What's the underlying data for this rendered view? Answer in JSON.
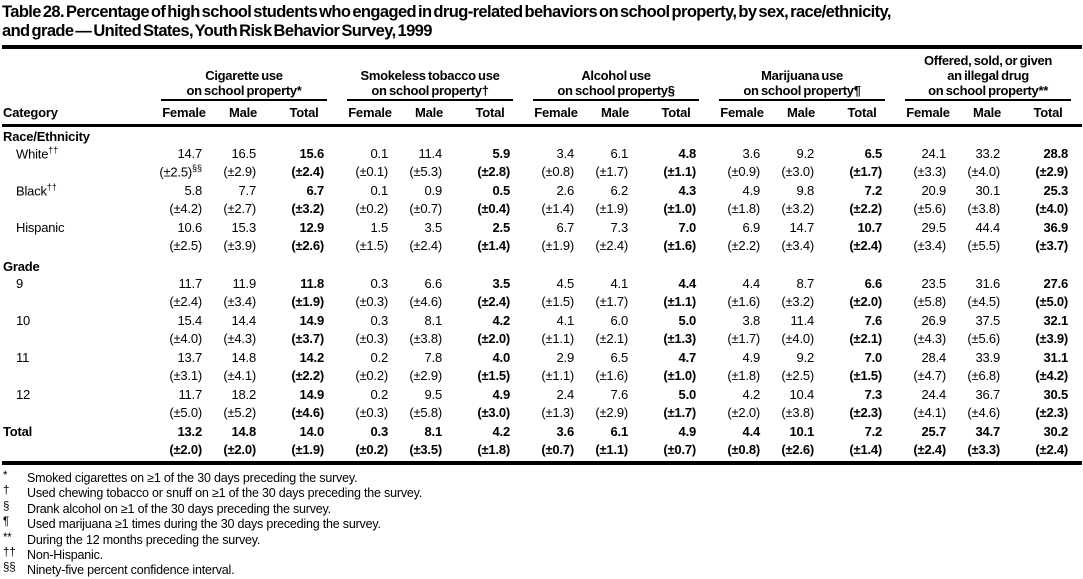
{
  "title": {
    "line1": "Table 28. Percentage of high school students who engaged in drug-related behaviors on school property, by sex, race/ethnicity,",
    "line2": "and grade — United States, Youth Risk Behavior Survey, 1999"
  },
  "table": {
    "category_header": "Category",
    "sub_headers": [
      "Female",
      "Male",
      "Total"
    ],
    "column_groups": [
      {
        "lines": [
          "Cigarette use",
          "on school property*"
        ]
      },
      {
        "lines": [
          "Smokeless tobacco use",
          "on school property†"
        ]
      },
      {
        "lines": [
          "Alcohol use",
          "on school property§"
        ]
      },
      {
        "lines": [
          "Marijuana use",
          "on school property¶"
        ]
      },
      {
        "lines": [
          "Offered, sold, or given",
          "an illegal drug",
          "on school property**"
        ]
      }
    ],
    "sections": [
      {
        "name": "Race/Ethnicity",
        "rows": [
          {
            "label": "White",
            "label_sup": "††",
            "bold": false,
            "values": [
              "14.7",
              "16.5",
              "15.6",
              "0.1",
              "11.4",
              "5.9",
              "3.4",
              "6.1",
              "4.8",
              "3.6",
              "9.2",
              "6.5",
              "24.1",
              "33.2",
              "28.8"
            ],
            "ci": [
              "(±2.5)|§§",
              "(±2.9)",
              "(±2.4)",
              "(±0.1)",
              "(±5.3)",
              "(±2.8)",
              "(±0.8)",
              "(±1.7)",
              "(±1.1)",
              "(±0.9)",
              "(±3.0)",
              "(±1.7)",
              "(±3.3)",
              "(±4.0)",
              "(±2.9)"
            ]
          },
          {
            "label": "Black",
            "label_sup": "††",
            "bold": false,
            "values": [
              "5.8",
              "7.7",
              "6.7",
              "0.1",
              "0.9",
              "0.5",
              "2.6",
              "6.2",
              "4.3",
              "4.9",
              "9.8",
              "7.2",
              "20.9",
              "30.1",
              "25.3"
            ],
            "ci": [
              "(±4.2)",
              "(±2.7)",
              "(±3.2)",
              "(±0.2)",
              "(±0.7)",
              "(±0.4)",
              "(±1.4)",
              "(±1.9)",
              "(±1.0)",
              "(±1.8)",
              "(±3.2)",
              "(±2.2)",
              "(±5.6)",
              "(±3.8)",
              "(±4.0)"
            ]
          },
          {
            "label": "Hispanic",
            "label_sup": "",
            "bold": false,
            "values": [
              "10.6",
              "15.3",
              "12.9",
              "1.5",
              "3.5",
              "2.5",
              "6.7",
              "7.3",
              "7.0",
              "6.9",
              "14.7",
              "10.7",
              "29.5",
              "44.4",
              "36.9"
            ],
            "ci": [
              "(±2.5)",
              "(±3.9)",
              "(±2.6)",
              "(±1.5)",
              "(±2.4)",
              "(±1.4)",
              "(±1.9)",
              "(±2.4)",
              "(±1.6)",
              "(±2.2)",
              "(±3.4)",
              "(±2.4)",
              "(±3.4)",
              "(±5.5)",
              "(±3.7)"
            ]
          }
        ]
      },
      {
        "name": "Grade",
        "rows": [
          {
            "label": "9",
            "label_sup": "",
            "bold": false,
            "values": [
              "11.7",
              "11.9",
              "11.8",
              "0.3",
              "6.6",
              "3.5",
              "4.5",
              "4.1",
              "4.4",
              "4.4",
              "8.7",
              "6.6",
              "23.5",
              "31.6",
              "27.6"
            ],
            "ci": [
              "(±2.4)",
              "(±3.4)",
              "(±1.9)",
              "(±0.3)",
              "(±4.6)",
              "(±2.4)",
              "(±1.5)",
              "(±1.7)",
              "(±1.1)",
              "(±1.6)",
              "(±3.2)",
              "(±2.0)",
              "(±5.8)",
              "(±4.5)",
              "(±5.0)"
            ]
          },
          {
            "label": "10",
            "label_sup": "",
            "bold": false,
            "values": [
              "15.4",
              "14.4",
              "14.9",
              "0.3",
              "8.1",
              "4.2",
              "4.1",
              "6.0",
              "5.0",
              "3.8",
              "11.4",
              "7.6",
              "26.9",
              "37.5",
              "32.1"
            ],
            "ci": [
              "(±4.0)",
              "(±4.3)",
              "(±3.7)",
              "(±0.3)",
              "(±3.8)",
              "(±2.0)",
              "(±1.1)",
              "(±2.1)",
              "(±1.3)",
              "(±1.7)",
              "(±4.0)",
              "(±2.1)",
              "(±4.3)",
              "(±5.6)",
              "(±3.9)"
            ]
          },
          {
            "label": "11",
            "label_sup": "",
            "bold": false,
            "values": [
              "13.7",
              "14.8",
              "14.2",
              "0.2",
              "7.8",
              "4.0",
              "2.9",
              "6.5",
              "4.7",
              "4.9",
              "9.2",
              "7.0",
              "28.4",
              "33.9",
              "31.1"
            ],
            "ci": [
              "(±3.1)",
              "(±4.1)",
              "(±2.2)",
              "(±0.2)",
              "(±2.9)",
              "(±1.5)",
              "(±1.1)",
              "(±1.6)",
              "(±1.0)",
              "(±1.8)",
              "(±2.5)",
              "(±1.5)",
              "(±4.7)",
              "(±6.8)",
              "(±4.2)"
            ]
          },
          {
            "label": "12",
            "label_sup": "",
            "bold": false,
            "values": [
              "11.7",
              "18.2",
              "14.9",
              "0.2",
              "9.5",
              "4.9",
              "2.4",
              "7.6",
              "5.0",
              "4.2",
              "10.4",
              "7.3",
              "24.4",
              "36.7",
              "30.5"
            ],
            "ci": [
              "(±5.0)",
              "(±5.2)",
              "(±4.6)",
              "(±0.3)",
              "(±5.8)",
              "(±3.0)",
              "(±1.3)",
              "(±2.9)",
              "(±1.7)",
              "(±2.0)",
              "(±3.8)",
              "(±2.3)",
              "(±4.1)",
              "(±4.6)",
              "(±2.3)"
            ]
          }
        ]
      },
      {
        "name": "",
        "rows": [
          {
            "label": "Total",
            "label_sup": "",
            "bold": true,
            "values": [
              "13.2",
              "14.8",
              "14.0",
              "0.3",
              "8.1",
              "4.2",
              "3.6",
              "6.1",
              "4.9",
              "4.4",
              "10.1",
              "7.2",
              "25.7",
              "34.7",
              "30.2"
            ],
            "ci": [
              "(±2.0)",
              "(±2.0)",
              "(±1.9)",
              "(±0.2)",
              "(±3.5)",
              "(±1.8)",
              "(±0.7)",
              "(±1.1)",
              "(±0.7)",
              "(±0.8)",
              "(±2.6)",
              "(±1.4)",
              "(±2.4)",
              "(±3.3)",
              "(±2.4)"
            ]
          }
        ]
      }
    ]
  },
  "footnotes": [
    {
      "marker": "*",
      "text": "Smoked cigarettes on ≥1 of the 30 days preceding the survey."
    },
    {
      "marker": "†",
      "text": "Used chewing tobacco or snuff on ≥1 of the 30 days preceding the survey."
    },
    {
      "marker": "§",
      "text": "Drank alcohol on ≥1 of the 30 days preceding the survey."
    },
    {
      "marker": "¶",
      "text": "Used marijuana ≥1 times during the 30 days preceding the survey."
    },
    {
      "marker": "**",
      "text": "During the 12 months preceding the survey."
    },
    {
      "marker": "††",
      "text": "Non-Hispanic."
    },
    {
      "marker": "§§",
      "text": "Ninety-five percent confidence interval."
    }
  ]
}
